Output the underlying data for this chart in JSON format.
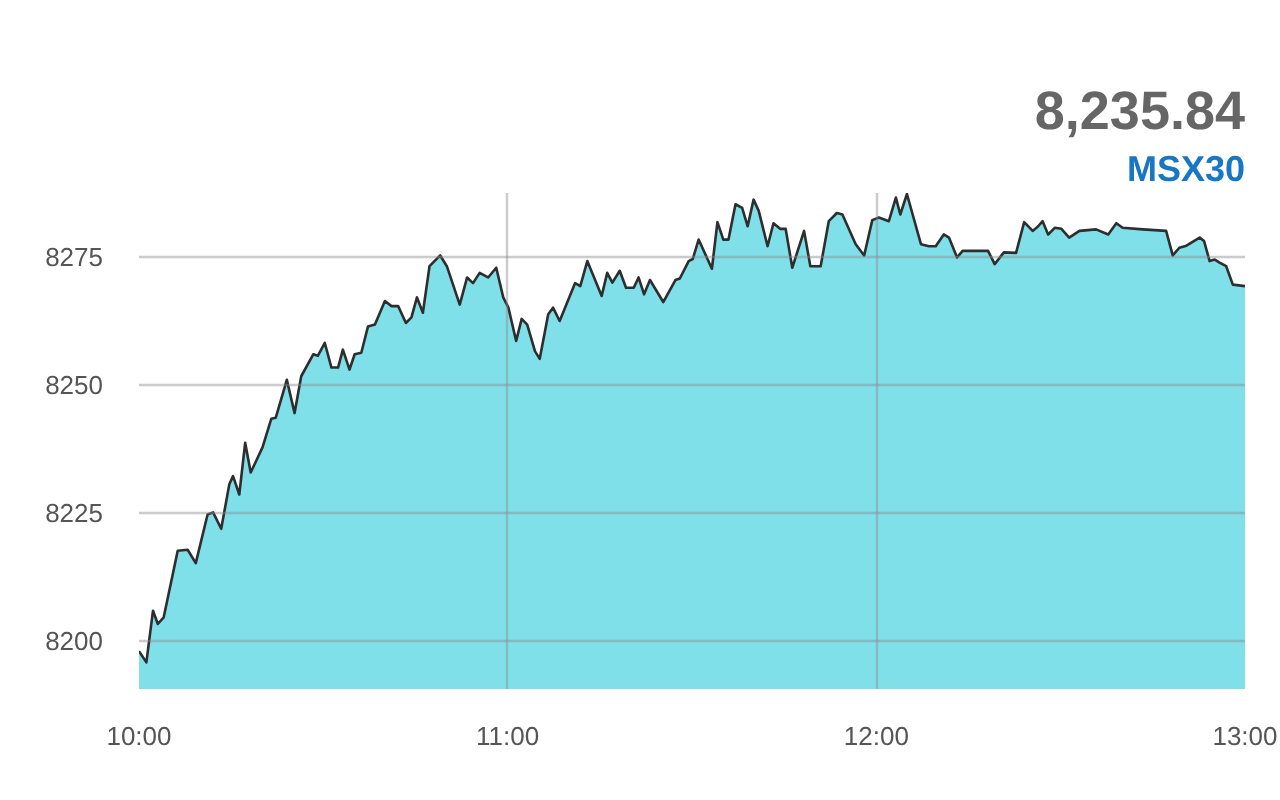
{
  "chart_data": {
    "type": "area",
    "title": "8,235.84",
    "subtitle": "MSX30",
    "color": "#7fe0e9",
    "x": [
      10.0,
      10.02,
      10.038,
      10.051,
      10.067,
      10.105,
      10.132,
      10.154,
      10.186,
      10.201,
      10.223,
      10.245,
      10.255,
      10.272,
      10.288,
      10.303,
      10.335,
      10.359,
      10.371,
      10.401,
      10.422,
      10.44,
      10.473,
      10.485,
      10.504,
      10.522,
      10.54,
      10.553,
      10.571,
      10.585,
      10.603,
      10.621,
      10.64,
      10.667,
      10.685,
      10.703,
      10.724,
      10.739,
      10.754,
      10.77,
      10.788,
      10.817,
      10.835,
      10.87,
      10.89,
      10.906,
      10.924,
      10.947,
      10.969,
      10.988,
      11.002,
      11.023,
      11.038,
      11.053,
      11.074,
      11.087,
      11.11,
      11.123,
      11.141,
      11.183,
      11.197,
      11.216,
      11.255,
      11.27,
      11.284,
      11.304,
      11.321,
      11.342,
      11.355,
      11.37,
      11.386,
      11.422,
      11.455,
      11.467,
      11.491,
      11.502,
      11.518,
      11.554,
      11.569,
      11.585,
      11.599,
      11.618,
      11.636,
      11.651,
      11.667,
      11.681,
      11.705,
      11.721,
      11.739,
      11.754,
      11.772,
      11.804,
      11.821,
      11.849,
      11.871,
      11.893,
      11.908,
      11.944,
      11.967,
      11.989,
      12.007,
      12.034,
      12.053,
      12.065,
      12.083,
      12.121,
      12.143,
      12.161,
      12.183,
      12.197,
      12.219,
      12.234,
      12.288,
      12.303,
      12.321,
      12.346,
      12.379,
      12.401,
      12.424,
      12.439,
      12.451,
      12.466,
      12.484,
      12.502,
      12.523,
      12.551,
      12.596,
      12.629,
      12.651,
      12.668,
      12.723,
      12.786,
      12.804,
      12.822,
      12.841,
      12.877,
      12.889,
      12.904,
      12.918,
      12.931,
      12.949,
      12.967,
      13.0
    ],
    "values": [
      8198.0,
      8195.8,
      8205.9,
      8203.3,
      8204.6,
      8217.6,
      8217.8,
      8215.2,
      8224.7,
      8225.1,
      8221.9,
      8230.6,
      8232.2,
      8228.6,
      8238.7,
      8232.9,
      8237.8,
      8243.4,
      8243.6,
      8251.0,
      8244.5,
      8251.7,
      8256.0,
      8255.7,
      8258.2,
      8253.4,
      8253.4,
      8256.9,
      8253.0,
      8256.0,
      8256.3,
      8261.4,
      8261.8,
      8266.4,
      8265.4,
      8265.4,
      8262.1,
      8263.2,
      8267.1,
      8264.1,
      8273.2,
      8275.3,
      8273.2,
      8265.7,
      8271.0,
      8269.9,
      8271.9,
      8271.0,
      8272.9,
      8267.1,
      8265.1,
      8258.6,
      8262.9,
      8261.8,
      8256.6,
      8255.1,
      8263.8,
      8265.1,
      8262.5,
      8269.9,
      8269.3,
      8274.2,
      8267.4,
      8271.9,
      8270.0,
      8272.3,
      8269.0,
      8269.0,
      8271.0,
      8267.7,
      8270.5,
      8266.2,
      8270.5,
      8270.8,
      8274.2,
      8274.6,
      8278.4,
      8272.7,
      8281.8,
      8278.4,
      8278.4,
      8285.3,
      8284.6,
      8281.0,
      8286.2,
      8284.0,
      8277.1,
      8281.6,
      8280.5,
      8280.5,
      8272.9,
      8280.1,
      8273.2,
      8273.2,
      8282.0,
      8283.6,
      8283.3,
      8277.5,
      8275.3,
      8282.2,
      8282.7,
      8282.0,
      8286.6,
      8283.3,
      8287.3,
      8277.5,
      8277.1,
      8277.1,
      8279.4,
      8278.8,
      8274.9,
      8276.2,
      8276.2,
      8276.2,
      8273.6,
      8275.9,
      8275.8,
      8281.8,
      8280.1,
      8281.0,
      8282.0,
      8279.4,
      8280.7,
      8280.5,
      8278.8,
      8280.1,
      8280.4,
      8279.4,
      8281.6,
      8280.7,
      8280.4,
      8280.1,
      8275.3,
      8276.8,
      8277.2,
      8278.8,
      8278.1,
      8274.2,
      8274.5,
      8273.9,
      8273.2,
      8269.6,
      8269.3
    ],
    "xlim": [
      10,
      13
    ],
    "xticks": [
      {
        "value": 10,
        "label": "10:00"
      },
      {
        "value": 11,
        "label": "11:00"
      },
      {
        "value": 12,
        "label": "12:00"
      },
      {
        "value": 13,
        "label": "13:00"
      }
    ],
    "ylim": [
      8190.6,
      8287.5
    ],
    "yticks": [
      8200,
      8225,
      8250,
      8275
    ],
    "grid": true
  }
}
